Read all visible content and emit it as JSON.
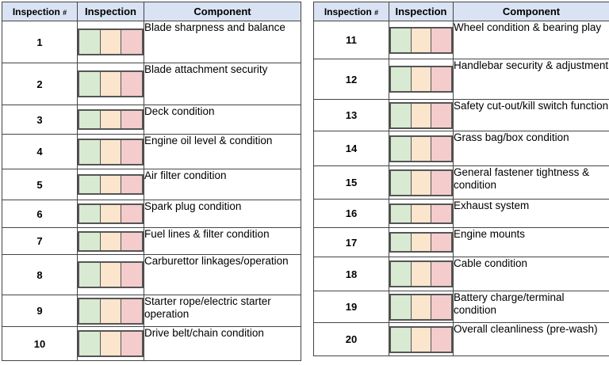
{
  "headers": {
    "number_label": "Inspection",
    "number_hash": "#",
    "inspection": "Inspection",
    "component": "Component"
  },
  "status_colors": {
    "good": "#d9ead3",
    "attention": "#fce5cd",
    "fail": "#f4cccc"
  },
  "left": [
    {
      "num": "1",
      "component": "Blade sharpness and balance"
    },
    {
      "num": "2",
      "component": "Blade attachment security"
    },
    {
      "num": "3",
      "component": "Deck condition"
    },
    {
      "num": "4",
      "component": "Engine oil level & condition"
    },
    {
      "num": "5",
      "component": "Air filter condition"
    },
    {
      "num": "6",
      "component": "Spark plug condition"
    },
    {
      "num": "7",
      "component": "Fuel lines & filter condition"
    },
    {
      "num": "8",
      "component": "Carburettor linkages/operation"
    },
    {
      "num": "9",
      "component": "Starter rope/electric starter operation"
    },
    {
      "num": "10",
      "component": "Drive belt/chain condition"
    }
  ],
  "right": [
    {
      "num": "11",
      "component": "Wheel condition & bearing play"
    },
    {
      "num": "12",
      "component": "Handlebar security & adjustment"
    },
    {
      "num": "13",
      "component": "Safety cut-out/kill switch function"
    },
    {
      "num": "14",
      "component": "Grass bag/box condition"
    },
    {
      "num": "15",
      "component": "General fastener tightness & condition"
    },
    {
      "num": "16",
      "component": "Exhaust system"
    },
    {
      "num": "17",
      "component": "Engine mounts"
    },
    {
      "num": "18",
      "component": "Cable condition"
    },
    {
      "num": "19",
      "component": "Battery charge/terminal condition"
    },
    {
      "num": "20",
      "component": "Overall cleanliness (pre-wash)"
    }
  ]
}
